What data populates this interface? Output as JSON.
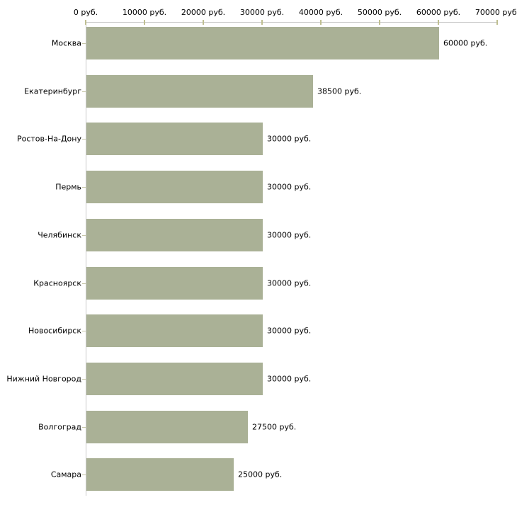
{
  "page": {
    "background": "#ffffff"
  },
  "chart_data": {
    "type": "bar",
    "orientation": "horizontal",
    "title": "",
    "categories": [
      "Москва",
      "Екатеринбург",
      "Ростов-На-Дону",
      "Пермь",
      "Челябинск",
      "Красноярск",
      "Новосибирск",
      "Нижний Новгород",
      "Волгоград",
      "Самара"
    ],
    "values": [
      60000,
      38500,
      30000,
      30000,
      30000,
      30000,
      30000,
      30000,
      27500,
      25000
    ],
    "value_labels": [
      "60000 руб.",
      "38500 руб.",
      "30000 руб.",
      "30000 руб.",
      "30000 руб.",
      "30000 руб.",
      "30000 руб.",
      "30000 руб.",
      "27500 руб.",
      "25000 руб."
    ],
    "x_axis": {
      "position": "top",
      "min": 0,
      "max": 70000,
      "ticks": [
        0,
        10000,
        20000,
        30000,
        40000,
        50000,
        60000,
        70000
      ],
      "tick_labels": [
        "0 руб.",
        "10000 руб.",
        "20000 руб.",
        "30000 руб.",
        "40000 руб.",
        "50000 руб.",
        "60000 руб.",
        "70000 руб."
      ]
    },
    "grid": false,
    "legend": null,
    "colors": {
      "bar": "#aab196",
      "axis_line": "#c9c9c9",
      "axis_tick": "#bfbf91",
      "category_tick": "#c6c6a8",
      "label_text": "#000000"
    }
  }
}
